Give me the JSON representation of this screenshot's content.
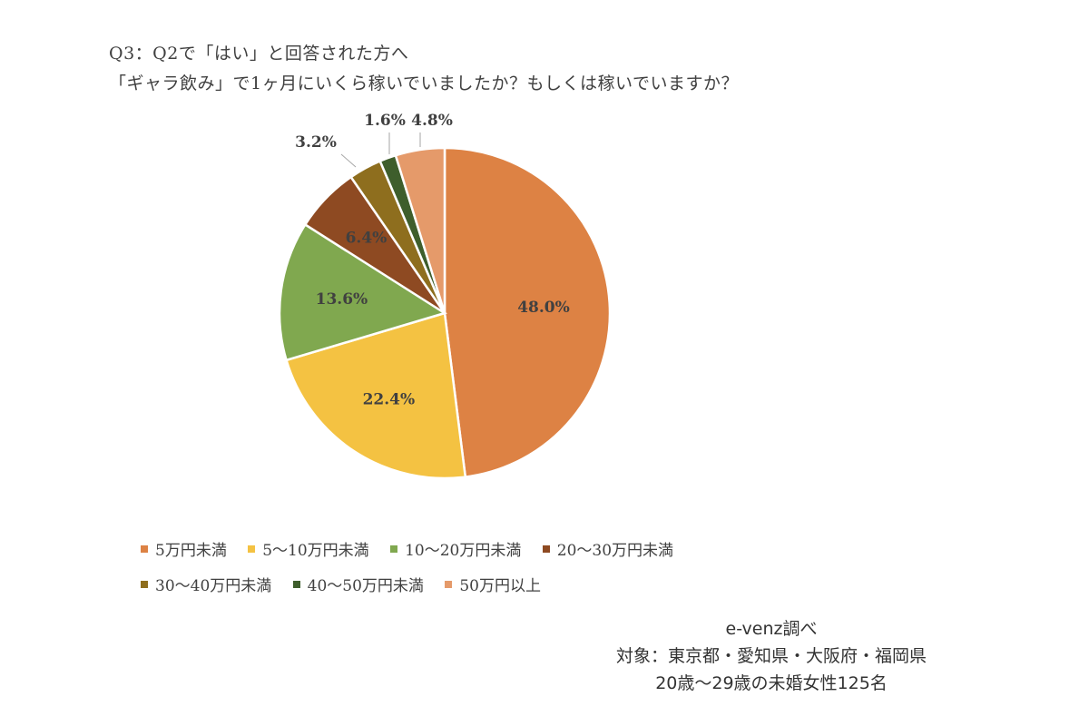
{
  "chart_data": {
    "type": "pie",
    "title_lines": [
      "Q3：Q2で「はい」と回答された方へ",
      "「ギャラ飲み」で1ヶ月にいくら稼いでいましたか？もしくは稼いでいますか？"
    ],
    "categories": [
      "5万円未満",
      "5〜10万円未満",
      "10〜20万円未満",
      "20〜30万円未満",
      "30〜40万円未満",
      "40〜50万円未満",
      "50万円以上"
    ],
    "values": [
      48.0,
      22.4,
      13.6,
      6.4,
      3.2,
      1.6,
      4.8
    ],
    "labels": [
      "48.0%",
      "22.4%",
      "13.6%",
      "6.4%",
      "3.2%",
      "1.6%",
      "4.8%"
    ],
    "colors": [
      "#DD8244",
      "#F4C242",
      "#80A84F",
      "#8E4A22",
      "#8E6E1E",
      "#3E5E2C",
      "#E59A6A"
    ],
    "start_angle_deg": 0,
    "direction": "clockwise",
    "legend_position": "bottom",
    "source_lines": [
      "e-venz調べ",
      "対象：東京都・愛知県・大阪府・福岡県",
      "20歳〜29歳の未婚女性125名"
    ]
  }
}
